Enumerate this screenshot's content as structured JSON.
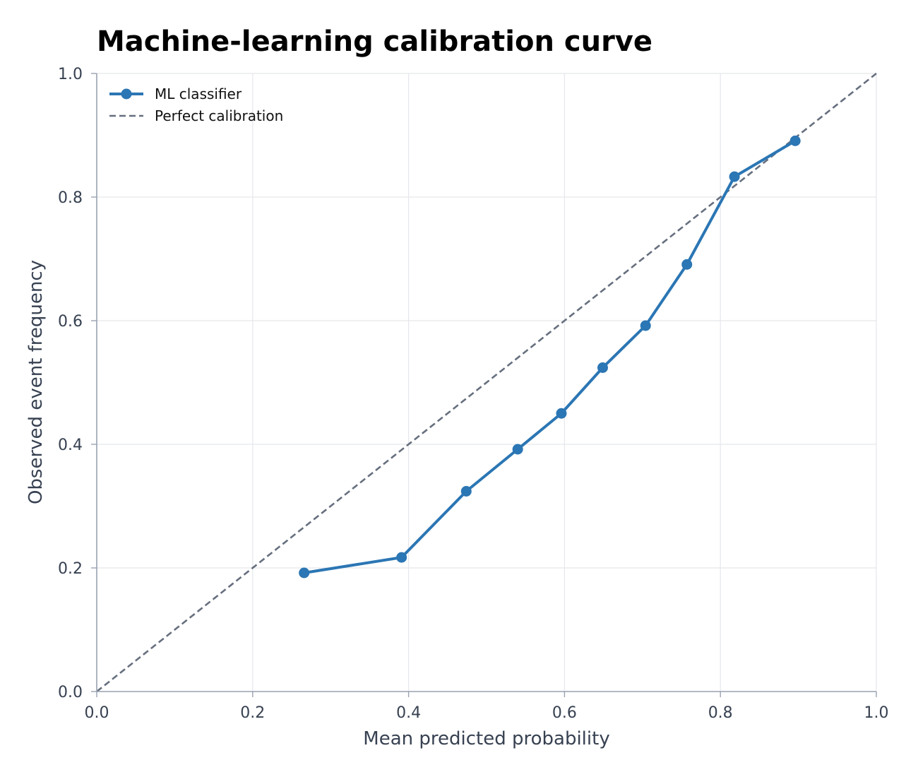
{
  "chart_data": {
    "type": "line",
    "title": "Machine-learning calibration curve",
    "xlabel": "Mean predicted probability",
    "ylabel": "Observed event frequency",
    "xlim": [
      0,
      1
    ],
    "ylim": [
      0,
      1
    ],
    "xticks": [
      0.0,
      0.2,
      0.4,
      0.6,
      0.8,
      1.0
    ],
    "yticks": [
      0.0,
      0.2,
      0.4,
      0.6,
      0.8,
      1.0
    ],
    "xtick_labels": [
      "0.0",
      "0.2",
      "0.4",
      "0.6",
      "0.8",
      "1.0"
    ],
    "ytick_labels": [
      "0.0",
      "0.2",
      "0.4",
      "0.6",
      "0.8",
      "1.0"
    ],
    "grid": true,
    "legend_position": "top-left",
    "series": [
      {
        "name": "ML classifier",
        "style": "solid-with-markers",
        "color": "#2b76b4",
        "x": [
          0.266,
          0.391,
          0.474,
          0.54,
          0.596,
          0.649,
          0.704,
          0.757,
          0.818,
          0.896
        ],
        "y": [
          0.192,
          0.217,
          0.324,
          0.392,
          0.45,
          0.524,
          0.592,
          0.691,
          0.833,
          0.891
        ]
      },
      {
        "name": "Perfect calibration",
        "style": "dashed",
        "color": "#666f7e",
        "x": [
          0,
          1
        ],
        "y": [
          0,
          1
        ]
      }
    ],
    "colors": {
      "grid": "#e5e7eb",
      "axis": "#9aa3b2",
      "tick_text": "#374151"
    }
  }
}
